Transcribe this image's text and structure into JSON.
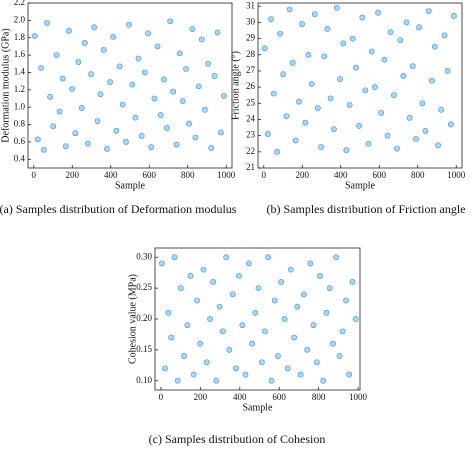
{
  "chart_data": [
    {
      "type": "scatter",
      "caption": "(a) Samples distribution of Deformation modulus",
      "xlabel": "Sample",
      "ylabel": "Deformation modulus (GPa)",
      "point_color": "#a9d8f5",
      "edge_color": "#3b8fd4",
      "xlim": [
        -30,
        1030
      ],
      "ylim": [
        0.3,
        2.2
      ],
      "xticks": [
        0,
        200,
        400,
        600,
        800,
        1000
      ],
      "yticks": [
        0.4,
        0.6,
        0.8,
        {
          "value": 1.0,
          "label": "1.0"
        },
        1.2,
        1.4,
        1.6,
        1.8,
        {
          "value": 2.0,
          "label": "2.0"
        },
        2.2
      ],
      "x": [
        5,
        21,
        38,
        52,
        69,
        85,
        101,
        118,
        134,
        150,
        166,
        183,
        199,
        216,
        232,
        249,
        265,
        281,
        298,
        314,
        331,
        347,
        364,
        380,
        396,
        413,
        429,
        446,
        462,
        479,
        495,
        512,
        528,
        544,
        561,
        577,
        594,
        610,
        627,
        643,
        659,
        676,
        692,
        709,
        725,
        742,
        758,
        774,
        791,
        807,
        824,
        840,
        857,
        873,
        889,
        906,
        922,
        939,
        955,
        972,
        988
      ],
      "y": [
        1.82,
        0.63,
        1.45,
        0.51,
        1.97,
        1.12,
        0.78,
        1.6,
        0.95,
        1.33,
        0.55,
        1.88,
        1.21,
        0.7,
        1.52,
        0.99,
        1.74,
        0.58,
        1.38,
        1.92,
        0.84,
        1.15,
        1.66,
        0.52,
        1.29,
        1.81,
        0.73,
        1.47,
        1.03,
        0.6,
        1.95,
        1.26,
        0.88,
        1.56,
        0.67,
        1.4,
        1.85,
        0.54,
        1.1,
        1.7,
        0.91,
        1.32,
        0.76,
        1.99,
        1.18,
        0.57,
        1.62,
        1.07,
        1.44,
        0.81,
        1.9,
        0.65,
        1.24,
        1.78,
        0.97,
        1.5,
        0.53,
        1.36,
        1.86,
        0.71,
        1.13
      ]
    },
    {
      "type": "scatter",
      "caption": "(b) Samples distribution of Friction angle",
      "xlabel": "Sample",
      "ylabel": "Friction angle (°)",
      "point_color": "#a9d8f5",
      "edge_color": "#3b8fd4",
      "xlim": [
        -30,
        1030
      ],
      "ylim": [
        21,
        31.2
      ],
      "xticks": [
        0,
        200,
        400,
        600,
        800,
        1000
      ],
      "yticks": [
        21,
        22,
        23,
        24,
        25,
        26,
        27,
        28,
        29,
        30,
        31
      ],
      "x": [
        5,
        21,
        38,
        52,
        69,
        85,
        101,
        118,
        134,
        150,
        166,
        183,
        199,
        216,
        232,
        249,
        265,
        281,
        298,
        314,
        331,
        347,
        364,
        380,
        396,
        413,
        429,
        446,
        462,
        479,
        495,
        512,
        528,
        544,
        561,
        577,
        594,
        610,
        627,
        643,
        659,
        676,
        692,
        709,
        725,
        742,
        758,
        774,
        791,
        807,
        824,
        840,
        857,
        873,
        889,
        906,
        922,
        939,
        955,
        972,
        988
      ],
      "y": [
        28.4,
        23.1,
        30.2,
        25.6,
        22.0,
        29.3,
        26.8,
        24.2,
        30.8,
        27.5,
        22.7,
        25.1,
        29.9,
        23.8,
        28.0,
        26.2,
        30.5,
        24.7,
        22.3,
        27.9,
        29.6,
        25.3,
        23.4,
        30.9,
        26.5,
        28.7,
        22.1,
        24.9,
        29.0,
        27.2,
        23.6,
        30.3,
        25.8,
        22.5,
        28.2,
        26.0,
        30.6,
        24.4,
        27.7,
        23.0,
        29.4,
        25.5,
        22.2,
        28.9,
        26.7,
        30.0,
        24.1,
        27.3,
        22.8,
        29.7,
        25.0,
        23.3,
        30.7,
        26.4,
        28.5,
        22.4,
        24.6,
        29.2,
        27.0,
        23.7,
        30.4
      ]
    },
    {
      "type": "scatter",
      "caption": "(c) Samples distribution of Cohesion",
      "xlabel": "Sample",
      "ylabel": "Cohesion value (MPa)",
      "point_color": "#a9d8f5",
      "edge_color": "#3b8fd4",
      "xlim": [
        -30,
        1010
      ],
      "ylim": [
        0.085,
        0.315
      ],
      "xticks": [
        0,
        200,
        400,
        600,
        800,
        1000
      ],
      "yticks": [
        {
          "value": 0.1,
          "label": "0.10"
        },
        0.15,
        {
          "value": 0.2,
          "label": "0.20"
        },
        0.25,
        {
          "value": 0.3,
          "label": "0.30"
        }
      ],
      "x": [
        5,
        21,
        38,
        52,
        69,
        85,
        101,
        118,
        134,
        150,
        166,
        183,
        199,
        216,
        232,
        249,
        265,
        281,
        298,
        314,
        331,
        347,
        364,
        380,
        396,
        413,
        429,
        446,
        462,
        479,
        495,
        512,
        528,
        544,
        561,
        577,
        594,
        610,
        627,
        643,
        659,
        676,
        692,
        709,
        725,
        742,
        758,
        774,
        791,
        807,
        824,
        840,
        857,
        873,
        889,
        906,
        922,
        939,
        955,
        972,
        988
      ],
      "y": [
        0.29,
        0.12,
        0.21,
        0.17,
        0.3,
        0.1,
        0.25,
        0.14,
        0.19,
        0.27,
        0.11,
        0.23,
        0.16,
        0.28,
        0.13,
        0.2,
        0.26,
        0.1,
        0.22,
        0.18,
        0.3,
        0.15,
        0.24,
        0.12,
        0.27,
        0.19,
        0.11,
        0.29,
        0.16,
        0.21,
        0.25,
        0.13,
        0.18,
        0.3,
        0.1,
        0.23,
        0.14,
        0.26,
        0.2,
        0.12,
        0.28,
        0.17,
        0.22,
        0.11,
        0.24,
        0.15,
        0.29,
        0.19,
        0.13,
        0.27,
        0.1,
        0.21,
        0.25,
        0.16,
        0.3,
        0.14,
        0.18,
        0.23,
        0.11,
        0.26,
        0.2
      ]
    }
  ]
}
